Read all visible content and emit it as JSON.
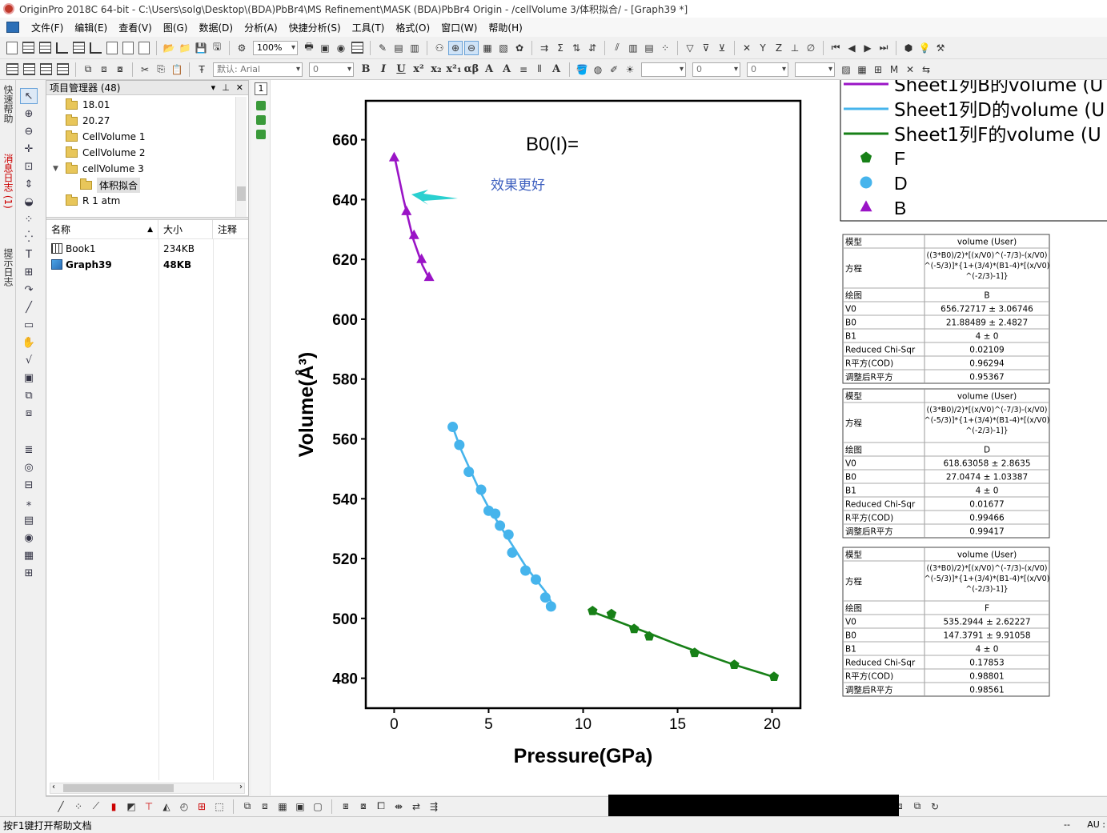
{
  "window": {
    "title": "OriginPro 2018C 64-bit - C:\\Users\\solg\\Desktop\\(BDA)PbBr4\\MS Refinement\\MASK (BDA)PbBr4 Origin - /cellVolume 3/体积拟合/ - [Graph39 *]"
  },
  "menu": [
    "文件(F)",
    "编辑(E)",
    "查看(V)",
    "图(G)",
    "数据(D)",
    "分析(A)",
    "快捷分析(S)",
    "工具(T)",
    "格式(O)",
    "窗口(W)",
    "帮助(H)"
  ],
  "toolbar": {
    "zoom": "100%",
    "font": "默认: Arial",
    "font_size": "0",
    "line_width": "0"
  },
  "left_tabs": {
    "quick_help": "快速帮助",
    "messages": "消息日志 (1)",
    "hints": "提示日志"
  },
  "explorer": {
    "title": "项目管理器 (48)",
    "folders": [
      {
        "label": "18.01"
      },
      {
        "label": "20.27"
      },
      {
        "label": "CellVolume 1"
      },
      {
        "label": "CellVolume 2"
      },
      {
        "label": "cellVolume 3"
      },
      {
        "label": "体积拟合",
        "selected": true
      },
      {
        "label": "R 1 atm"
      }
    ],
    "columns": [
      "名称",
      "大小",
      "注释"
    ],
    "files": [
      {
        "name": "Book1",
        "size": "234KB",
        "type": "workbook"
      },
      {
        "name": "Graph39",
        "size": "48KB",
        "type": "graph"
      }
    ]
  },
  "graph": {
    "layer_label": "1",
    "annotation_b0": "B0(I)=",
    "annotation_note": "效果更好",
    "colors": {
      "B": "#9a14c6",
      "D": "#46b4ec",
      "F": "#178017",
      "arrow": "#2ad0d0",
      "note": "#3d5fbf"
    },
    "legend": {
      "lines": [
        {
          "label": "Sheet1列B的volume (U",
          "color": "#9a14c6"
        },
        {
          "label": "Sheet1列D的volume (U",
          "color": "#46b4ec"
        },
        {
          "label": "Sheet1列F的volume (U",
          "color": "#178017"
        }
      ],
      "symbols": [
        {
          "label": "F",
          "shape": "pentagon",
          "color": "#178017"
        },
        {
          "label": "D",
          "shape": "circle",
          "color": "#46b4ec"
        },
        {
          "label": "B",
          "shape": "triangle",
          "color": "#9a14c6"
        }
      ]
    },
    "fit_tables": [
      {
        "rows": [
          {
            "k": "模型",
            "v": "volume (User)"
          },
          {
            "k": "方程",
            "v": [
              "((3*B0)/2)*[(x/V0)^(-7/3)-(x/V0)",
              "^(-5/3)]*{1+(3/4)*(B1-4)*[(x/V0)",
              "^(-2/3)-1]}"
            ]
          },
          {
            "k": "绘图",
            "v": "B"
          },
          {
            "k": "V0",
            "v": "656.72717 ± 3.06746"
          },
          {
            "k": "B0",
            "v": "21.88489 ± 2.4827"
          },
          {
            "k": "B1",
            "v": "4 ± 0"
          },
          {
            "k": "Reduced Chi-Sqr",
            "v": "0.02109"
          },
          {
            "k": "R平方(COD)",
            "v": "0.96294"
          },
          {
            "k": "调整后R平方",
            "v": "0.95367"
          }
        ]
      },
      {
        "rows": [
          {
            "k": "模型",
            "v": "volume (User)"
          },
          {
            "k": "方程",
            "v": [
              "((3*B0)/2)*[(x/V0)^(-7/3)-(x/V0)",
              "^(-5/3)]*{1+(3/4)*(B1-4)*[(x/V0)",
              "^(-2/3)-1]}"
            ]
          },
          {
            "k": "绘图",
            "v": "D"
          },
          {
            "k": "V0",
            "v": "618.63058 ± 2.8635"
          },
          {
            "k": "B0",
            "v": "27.0474 ± 1.03387"
          },
          {
            "k": "B1",
            "v": "4 ± 0"
          },
          {
            "k": "Reduced Chi-Sqr",
            "v": "0.01677"
          },
          {
            "k": "R平方(COD)",
            "v": "0.99466"
          },
          {
            "k": "调整后R平方",
            "v": "0.99417"
          }
        ]
      },
      {
        "rows": [
          {
            "k": "模型",
            "v": "volume (User)"
          },
          {
            "k": "方程",
            "v": [
              "((3*B0)/2)*[(x/V0)^(-7/3)-(x/V0)",
              "^(-5/3)]*{1+(3/4)*(B1-4)*[(x/V0)",
              "^(-2/3)-1]}"
            ]
          },
          {
            "k": "绘图",
            "v": "F"
          },
          {
            "k": "V0",
            "v": "535.2944 ± 2.62227"
          },
          {
            "k": "B0",
            "v": "147.3791 ± 9.91058"
          },
          {
            "k": "B1",
            "v": "4 ± 0"
          },
          {
            "k": "Reduced Chi-Sqr",
            "v": "0.17853"
          },
          {
            "k": "R平方(COD)",
            "v": "0.98801"
          },
          {
            "k": "调整后R平方",
            "v": "0.98561"
          }
        ]
      }
    ]
  },
  "chart_data": {
    "type": "scatter",
    "xlabel": "Pressure(GPa)",
    "ylabel": "Volume(Å³)",
    "xlim": [
      -1.5,
      21.5
    ],
    "ylim": [
      470,
      673
    ],
    "xticks": [
      0,
      5,
      10,
      15,
      20
    ],
    "yticks": [
      480,
      500,
      520,
      540,
      560,
      580,
      600,
      620,
      640,
      660
    ],
    "grid": false,
    "series": [
      {
        "name": "B",
        "marker": "triangle",
        "color": "#9a14c6",
        "x": [
          0,
          0.65,
          1.05,
          1.45,
          1.85
        ],
        "y": [
          654,
          636,
          628,
          620,
          614
        ],
        "fit_x": [
          0,
          0.5,
          1.0,
          1.5,
          1.9
        ],
        "fit_y": [
          655,
          640,
          627,
          618,
          613
        ]
      },
      {
        "name": "D",
        "marker": "circle",
        "color": "#46b4ec",
        "x": [
          3.1,
          3.45,
          3.95,
          4.6,
          5.0,
          5.35,
          5.6,
          6.05,
          6.25,
          6.95,
          7.5,
          8.0,
          8.3
        ],
        "y": [
          564,
          558,
          549,
          543,
          536,
          535,
          531,
          528,
          522,
          516,
          513,
          507,
          504
        ],
        "fit_x": [
          3.1,
          3.5,
          4.0,
          4.5,
          5.0,
          5.5,
          6.0,
          6.5,
          7.0,
          7.5,
          8.0,
          8.35
        ],
        "fit_y": [
          564,
          557,
          550,
          543,
          537,
          532,
          527,
          522,
          517,
          513,
          509,
          505
        ]
      },
      {
        "name": "F",
        "marker": "pentagon",
        "color": "#178017",
        "x": [
          10.5,
          11.5,
          12.7,
          13.5,
          15.9,
          18.0,
          20.1
        ],
        "y": [
          502.5,
          501.5,
          496.5,
          494,
          488.5,
          484.5,
          480.5
        ],
        "fit_x": [
          10.5,
          12.0,
          13.5,
          15.0,
          16.5,
          18.0,
          19.5,
          20.1
        ],
        "fit_y": [
          502.2,
          498.6,
          495.0,
          491.3,
          487.8,
          484.5,
          481.6,
          480.4
        ]
      }
    ]
  },
  "status": {
    "left": "按F1键打开帮助文档",
    "mid": "--",
    "right": "AU :"
  }
}
